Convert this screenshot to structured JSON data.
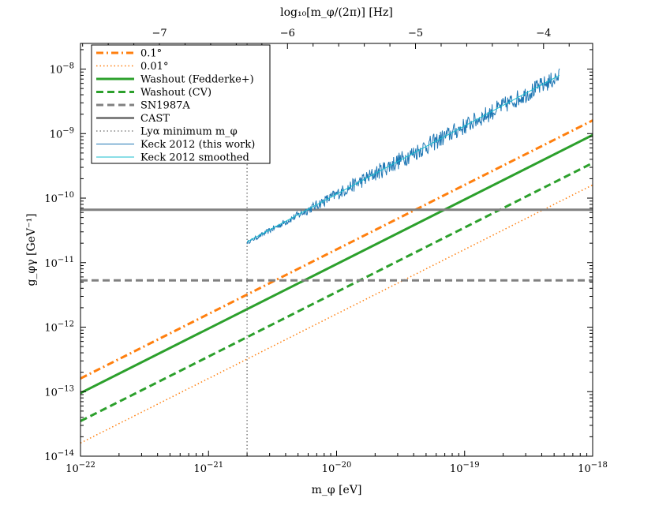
{
  "chart_data": {
    "type": "line",
    "scale": {
      "x": "log",
      "y": "log",
      "top_x": "linear"
    },
    "xlim": [
      1e-22,
      1e-18
    ],
    "ylim": [
      1e-14,
      2.5e-08
    ],
    "xlabel": "m_φ [eV]",
    "ylabel": "g_φγ [GeV⁻¹]",
    "top_xlabel": "log₁₀[m_φ/(2π)] [Hz]",
    "x_ticks": [
      {
        "value": 1e-22,
        "base": "10",
        "exp": "−22"
      },
      {
        "value": 1e-21,
        "base": "10",
        "exp": "−21"
      },
      {
        "value": 1e-20,
        "base": "10",
        "exp": "−20"
      },
      {
        "value": 1e-19,
        "base": "10",
        "exp": "−19"
      },
      {
        "value": 1e-18,
        "base": "10",
        "exp": "−18"
      }
    ],
    "y_ticks": [
      {
        "value": 1e-14,
        "base": "10",
        "exp": "−14"
      },
      {
        "value": 1e-13,
        "base": "10",
        "exp": "−13"
      },
      {
        "value": 1e-12,
        "base": "10",
        "exp": "−12"
      },
      {
        "value": 1e-11,
        "base": "10",
        "exp": "−11"
      },
      {
        "value": 1e-10,
        "base": "10",
        "exp": "−10"
      },
      {
        "value": 1e-09,
        "base": "10",
        "exp": "−9"
      },
      {
        "value": 1e-08,
        "base": "10",
        "exp": "−8"
      }
    ],
    "top_ticks": [
      {
        "label": "−7",
        "log10_freq": -7
      },
      {
        "label": "−6",
        "log10_freq": -6
      },
      {
        "label": "−5",
        "log10_freq": -5
      },
      {
        "label": "−4",
        "log10_freq": -4
      }
    ],
    "series": [
      {
        "name": "0.1°",
        "kind": "powerlaw",
        "x": [
          1e-22,
          1e-18
        ],
        "y": [
          1.6e-13,
          1.6e-09
        ],
        "color": "#ff7f0e",
        "style": "dashdot",
        "width": 3
      },
      {
        "name": "0.01°",
        "kind": "powerlaw",
        "x": [
          1e-22,
          1e-18
        ],
        "y": [
          1.6e-14,
          1.6e-10
        ],
        "color": "#ff7f0e",
        "style": "dotted",
        "width": 1.5
      },
      {
        "name": "Washout (Fedderke+)",
        "kind": "powerlaw",
        "x": [
          1e-22,
          1e-18
        ],
        "y": [
          9.5e-14,
          9.5e-10
        ],
        "color": "#2ca02c",
        "style": "solid",
        "width": 3
      },
      {
        "name": "Washout (CV)",
        "kind": "powerlaw",
        "x": [
          1e-22,
          1e-18
        ],
        "y": [
          3.5e-14,
          3.5e-10
        ],
        "color": "#2ca02c",
        "style": "dashed",
        "width": 3
      },
      {
        "name": "SN1987A",
        "kind": "hline",
        "y": 5.3e-12,
        "color": "#808080",
        "style": "dashed",
        "width": 3
      },
      {
        "name": "CAST",
        "kind": "hline",
        "y": 6.6e-11,
        "color": "#808080",
        "style": "solid",
        "width": 3
      },
      {
        "name": "Lyα minimum m_φ",
        "kind": "vline",
        "x": 2e-21,
        "color": "#808080",
        "style": "dotted",
        "width": 1.5
      },
      {
        "name": "Keck 2012 (this work)",
        "kind": "noisy_band",
        "x_range": [
          2e-21,
          5.5e-19
        ],
        "y_range": [
          2e-11,
          7e-09
        ],
        "color": "#1f77b4",
        "style": "solid",
        "width": 1
      },
      {
        "name": "Keck 2012 smoothed",
        "kind": "powerlaw",
        "x": [
          2e-21,
          5.5e-19
        ],
        "y": [
          2.1e-11,
          8e-09
        ],
        "color": "#17becf",
        "style": "solid",
        "width": 1
      }
    ],
    "legend": {
      "placement": "top-left",
      "entries": [
        {
          "label": "0.1°",
          "color": "#ff7f0e",
          "style": "dashdot"
        },
        {
          "label": "0.01°",
          "color": "#ff7f0e",
          "style": "dotted"
        },
        {
          "label": "Washout (Fedderke+)",
          "color": "#2ca02c",
          "style": "solid"
        },
        {
          "label": "Washout (CV)",
          "color": "#2ca02c",
          "style": "dashed"
        },
        {
          "label": "SN1987A",
          "color": "#808080",
          "style": "dashed"
        },
        {
          "label": "CAST",
          "color": "#808080",
          "style": "solid"
        },
        {
          "label": "Lyα minimum m_φ",
          "color": "#808080",
          "style": "dotted"
        },
        {
          "label": "Keck 2012 (this work)",
          "color": "#1f77b4",
          "style": "solid"
        },
        {
          "label": "Keck 2012 smoothed",
          "color": "#17becf",
          "style": "solid"
        }
      ]
    }
  }
}
